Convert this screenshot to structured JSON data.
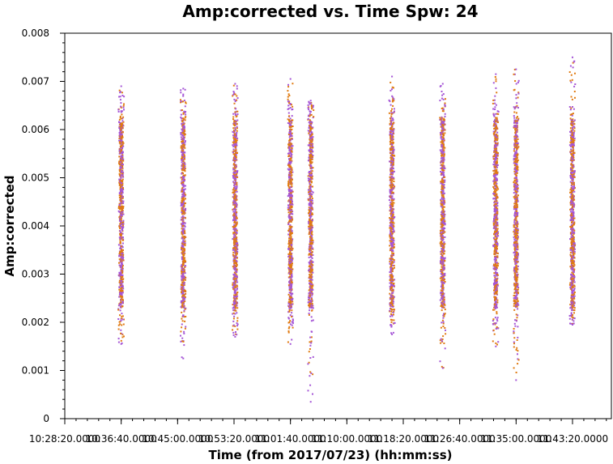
{
  "chart_data": {
    "type": "scatter",
    "title": "Amp:corrected vs. Time Spw: 24",
    "xlabel": "Time (from 2017/07/23) (hh:mm:ss)",
    "ylabel": "Amp:corrected",
    "ylim": [
      0,
      0.008
    ],
    "y_ticks": [
      "0",
      "0.001",
      "0.002",
      "0.003",
      "0.004",
      "0.005",
      "0.006",
      "0.007",
      "0.008"
    ],
    "x_ticks": [
      "10:28:20.0000",
      "10:36:40.0000",
      "10:45:00.0000",
      "10:53:20.0000",
      "11:01:40.0000",
      "11:10:00.0000",
      "11:18:20.0000",
      "11:26:40.0000",
      "11:35:00.0000",
      "11:43:20.0000"
    ],
    "x_tick_labels": [
      "10:28:20.0000",
      "10:36:40.0000",
      "10:45:00.0000",
      "10:53:20.0000",
      "11:01:40.0000",
      "11:10:00.0000",
      "11:18:20.0000",
      "11:26:40.0000",
      "11:35:00.0000",
      "11:43:20.0000"
    ],
    "series_colors": [
      "#e07a10",
      "#a555d6"
    ],
    "scans": [
      {
        "time": "10:36:40",
        "ymin": 0.00155,
        "ymax": 0.0069
      },
      {
        "time": "10:45:50",
        "ymin": 0.00125,
        "ymax": 0.00685
      },
      {
        "time": "10:53:30",
        "ymin": 0.0017,
        "ymax": 0.00695
      },
      {
        "time": "11:01:40",
        "ymin": 0.00155,
        "ymax": 0.00705
      },
      {
        "time": "11:04:40",
        "ymin": 0.00035,
        "ymax": 0.0066
      },
      {
        "time": "11:16:40",
        "ymin": 0.00175,
        "ymax": 0.0071
      },
      {
        "time": "11:24:10",
        "ymin": 0.00105,
        "ymax": 0.00695
      },
      {
        "time": "11:32:00",
        "ymin": 0.0015,
        "ymax": 0.00715
      },
      {
        "time": "11:35:00",
        "ymin": 0.0008,
        "ymax": 0.00725
      },
      {
        "time": "11:43:20",
        "ymin": 0.00195,
        "ymax": 0.0075
      }
    ]
  }
}
